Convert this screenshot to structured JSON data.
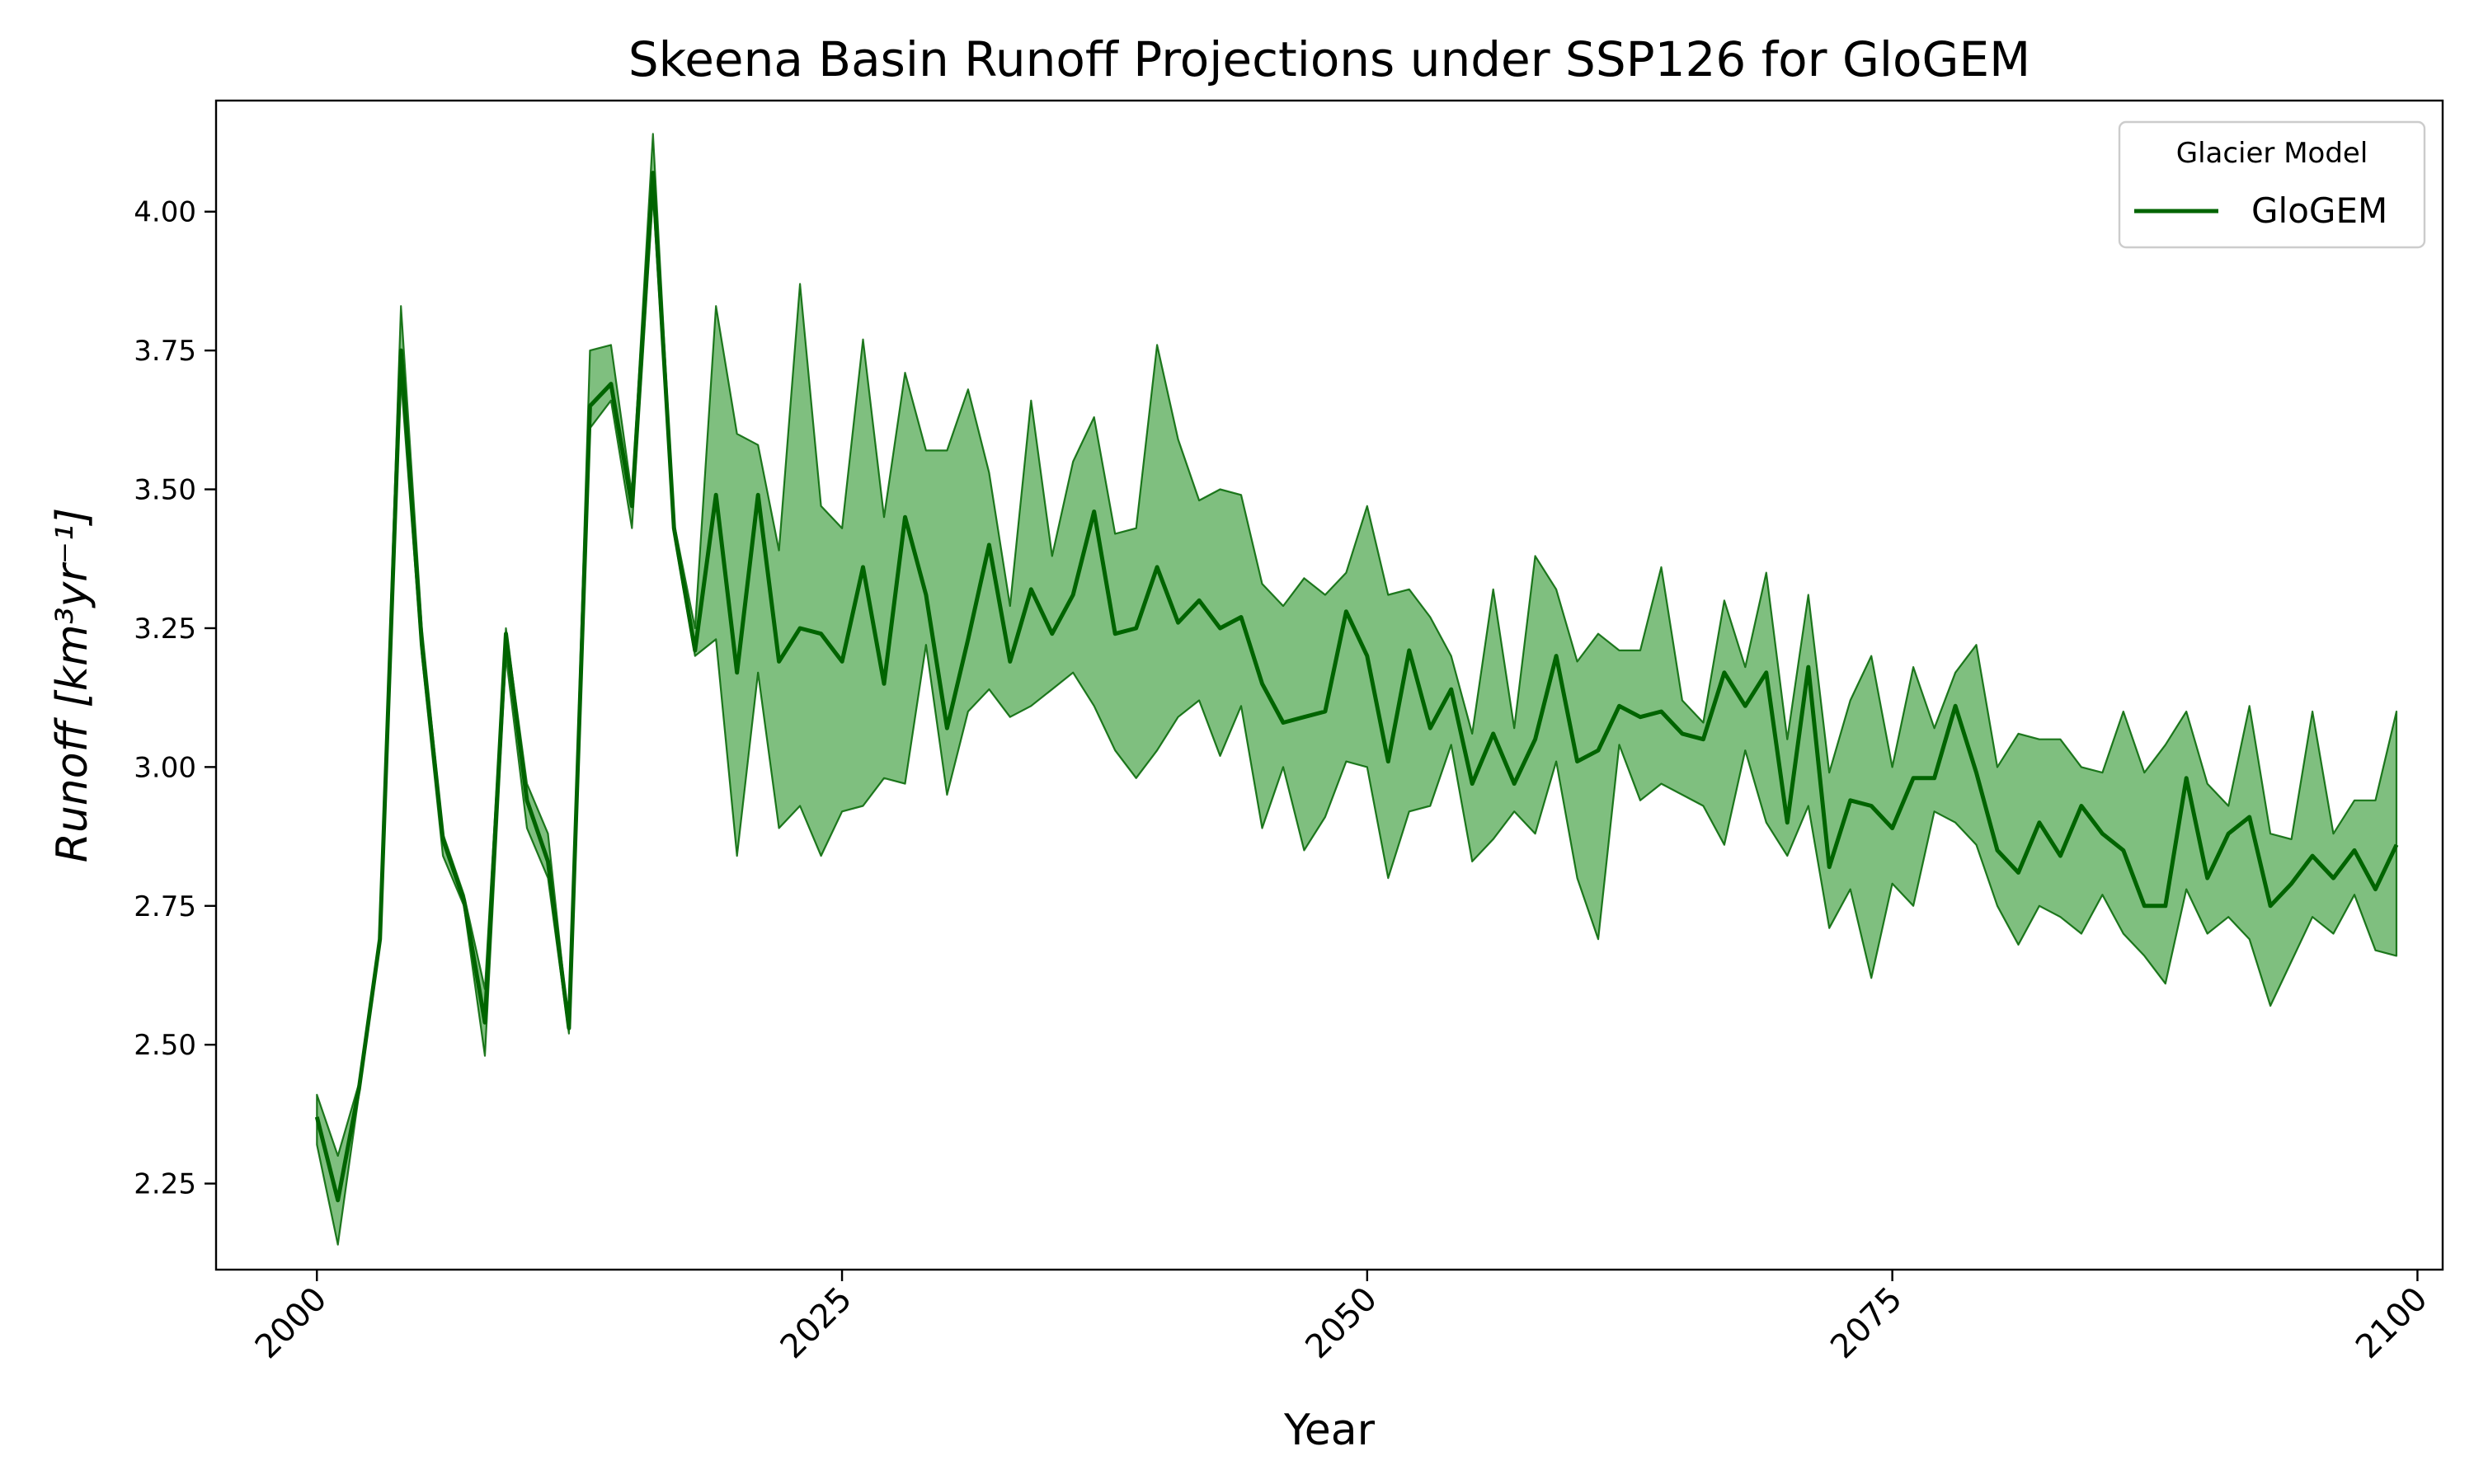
{
  "chart_data": {
    "type": "line",
    "title": "Skeena Basin Runoff Projections under SSP126 for GloGEM",
    "xlabel": "Year",
    "ylabel": "Runoff [km³yr⁻¹]",
    "xlim": [
      1995.2,
      2101.2
    ],
    "ylim": [
      2.095,
      4.2
    ],
    "x_ticks": [
      2000,
      2025,
      2050,
      2075,
      2100
    ],
    "y_ticks": [
      2.25,
      2.5,
      2.75,
      3.0,
      3.25,
      3.5,
      3.75,
      4.0
    ],
    "x_tick_labels": [
      "2000",
      "2025",
      "2050",
      "2075",
      "2100"
    ],
    "y_tick_labels": [
      "2.25",
      "2.50",
      "2.75",
      "3.00",
      "3.25",
      "3.50",
      "3.75",
      "4.00"
    ],
    "grid": false,
    "legend": {
      "title": "Glacier Model",
      "position": "top-right"
    },
    "series": [
      {
        "name": "GloGEM",
        "color": "#006400",
        "band_color": "#7fbf7f",
        "x": [
          2000,
          2001,
          2002,
          2003,
          2004,
          2005,
          2006,
          2007,
          2008,
          2009,
          2010,
          2011,
          2012,
          2013,
          2014,
          2015,
          2016,
          2017,
          2018,
          2019,
          2020,
          2021,
          2022,
          2023,
          2024,
          2025,
          2026,
          2027,
          2028,
          2029,
          2030,
          2031,
          2032,
          2033,
          2034,
          2035,
          2036,
          2037,
          2038,
          2039,
          2040,
          2041,
          2042,
          2043,
          2044,
          2045,
          2046,
          2047,
          2048,
          2049,
          2050,
          2051,
          2052,
          2053,
          2054,
          2055,
          2056,
          2057,
          2058,
          2059,
          2060,
          2061,
          2062,
          2063,
          2064,
          2065,
          2066,
          2067,
          2068,
          2069,
          2070,
          2071,
          2072,
          2073,
          2074,
          2075,
          2076,
          2077,
          2078,
          2079,
          2080,
          2081,
          2082,
          2083,
          2084,
          2085,
          2086,
          2087,
          2088,
          2089,
          2090,
          2091,
          2092,
          2093,
          2094,
          2095,
          2096,
          2097,
          2098,
          2099
        ],
        "mean": [
          2.37,
          2.22,
          2.42,
          2.69,
          3.75,
          3.22,
          2.87,
          2.76,
          2.54,
          3.24,
          2.94,
          2.83,
          2.53,
          3.65,
          3.69,
          3.47,
          4.07,
          3.43,
          3.21,
          3.49,
          3.17,
          3.49,
          3.19,
          3.25,
          3.24,
          3.19,
          3.36,
          3.15,
          3.45,
          3.31,
          3.07,
          3.23,
          3.4,
          3.19,
          3.32,
          3.24,
          3.31,
          3.46,
          3.24,
          3.25,
          3.36,
          3.26,
          3.3,
          3.25,
          3.27,
          3.15,
          3.08,
          3.09,
          3.1,
          3.28,
          3.2,
          3.01,
          3.21,
          3.07,
          3.14,
          2.97,
          3.06,
          2.97,
          3.05,
          3.2,
          3.01,
          3.03,
          3.11,
          3.09,
          3.1,
          3.06,
          3.05,
          3.17,
          3.11,
          3.17,
          2.9,
          3.18,
          2.82,
          2.94,
          2.93,
          2.89,
          2.98,
          2.98,
          3.11,
          2.99,
          2.85,
          2.81,
          2.9,
          2.84,
          2.93,
          2.88,
          2.85,
          2.75,
          2.75,
          2.98,
          2.8,
          2.88,
          2.91,
          2.75,
          2.79,
          2.84,
          2.8,
          2.85,
          2.78,
          2.86
        ],
        "upper": [
          2.41,
          2.3,
          2.43,
          2.7,
          3.83,
          3.25,
          2.88,
          2.77,
          2.6,
          3.25,
          2.97,
          2.88,
          2.53,
          3.75,
          3.76,
          3.49,
          4.14,
          3.44,
          3.25,
          3.83,
          3.6,
          3.58,
          3.39,
          3.87,
          3.47,
          3.43,
          3.77,
          3.45,
          3.71,
          3.57,
          3.57,
          3.68,
          3.53,
          3.29,
          3.66,
          3.38,
          3.55,
          3.63,
          3.42,
          3.43,
          3.76,
          3.59,
          3.48,
          3.5,
          3.49,
          3.33,
          3.29,
          3.34,
          3.31,
          3.35,
          3.47,
          3.31,
          3.32,
          3.27,
          3.2,
          3.06,
          3.32,
          3.07,
          3.38,
          3.32,
          3.19,
          3.24,
          3.21,
          3.21,
          3.36,
          3.12,
          3.08,
          3.3,
          3.18,
          3.35,
          3.05,
          3.31,
          2.99,
          3.12,
          3.2,
          3.0,
          3.18,
          3.07,
          3.17,
          3.22,
          3.0,
          3.06,
          3.05,
          3.05,
          3.0,
          2.99,
          3.1,
          2.99,
          3.04,
          3.1,
          2.97,
          2.93,
          3.11,
          2.88,
          2.87,
          3.1,
          2.88,
          2.94,
          2.94,
          3.1
        ],
        "lower": [
          2.32,
          2.14,
          2.41,
          2.68,
          3.7,
          3.2,
          2.84,
          2.75,
          2.48,
          3.2,
          2.89,
          2.8,
          2.52,
          3.61,
          3.66,
          3.43,
          4.03,
          3.42,
          3.2,
          3.23,
          2.84,
          3.17,
          2.89,
          2.93,
          2.84,
          2.92,
          2.93,
          2.98,
          2.97,
          3.22,
          2.95,
          3.1,
          3.14,
          3.09,
          3.11,
          3.14,
          3.17,
          3.11,
          3.03,
          2.98,
          3.03,
          3.09,
          3.12,
          3.02,
          3.11,
          2.89,
          3.0,
          2.85,
          2.91,
          3.01,
          3.0,
          2.8,
          2.92,
          2.93,
          3.04,
          2.83,
          2.87,
          2.92,
          2.88,
          3.01,
          2.8,
          2.69,
          3.04,
          2.94,
          2.97,
          2.95,
          2.93,
          2.86,
          3.03,
          2.9,
          2.84,
          2.93,
          2.71,
          2.78,
          2.62,
          2.79,
          2.75,
          2.92,
          2.9,
          2.86,
          2.75,
          2.68,
          2.75,
          2.73,
          2.7,
          2.77,
          2.7,
          2.66,
          2.61,
          2.78,
          2.7,
          2.73,
          2.69,
          2.57,
          2.65,
          2.73,
          2.7,
          2.77,
          2.67,
          2.66
        ]
      }
    ]
  }
}
